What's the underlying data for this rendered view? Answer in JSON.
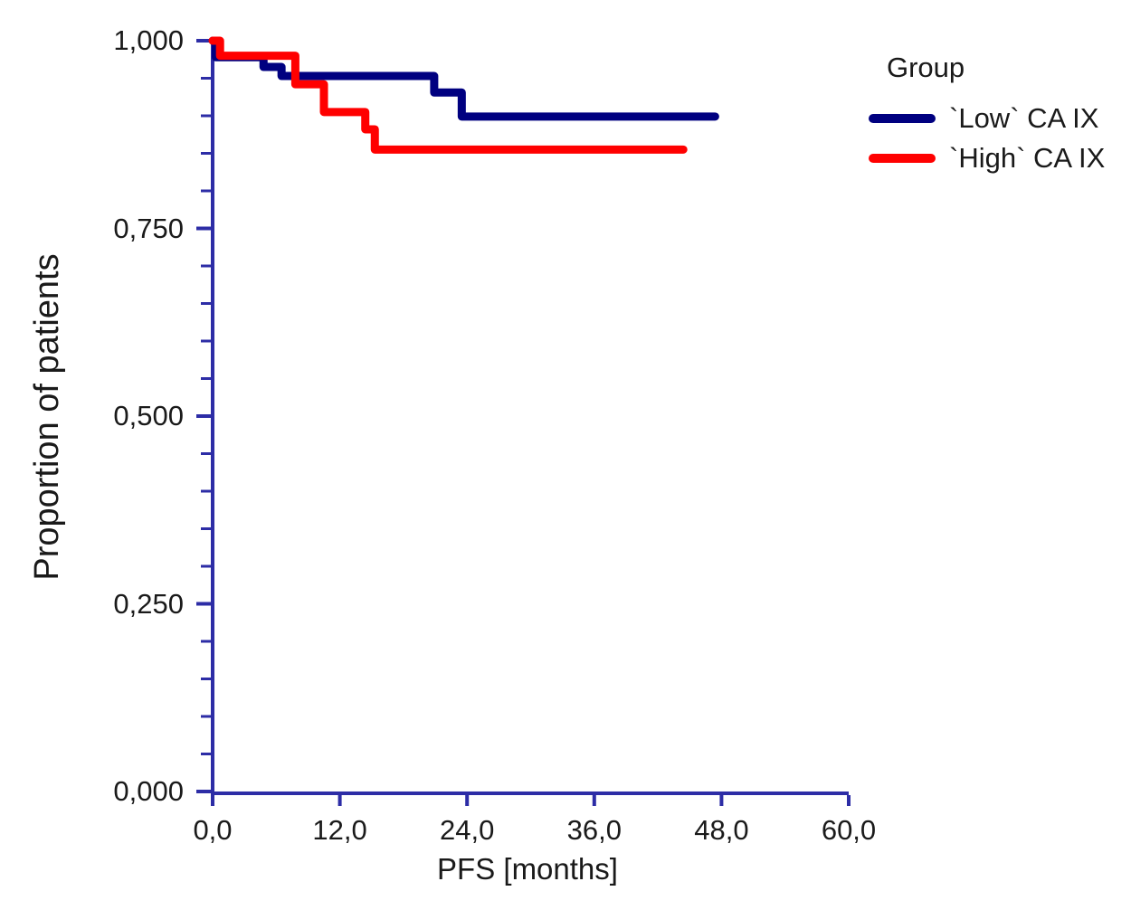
{
  "legend": {
    "title": "Group",
    "items": [
      {
        "label": "`Low` CA IX",
        "color": "#000080"
      },
      {
        "label": "`High` CA IX",
        "color": "#ff0000"
      }
    ]
  },
  "chart_data": {
    "type": "line",
    "subtype": "kaplan-meier-step",
    "title": "",
    "xlabel": "PFS [months]",
    "ylabel": "Proportion of patients",
    "xlim": [
      0,
      60
    ],
    "ylim": [
      0.0,
      1.0
    ],
    "grid": false,
    "legend_position": "top-right",
    "axis_color": "#2d2da6",
    "x_ticks": {
      "values": [
        0,
        12,
        24,
        36,
        48,
        60
      ],
      "labels": [
        "0,0",
        "12,0",
        "24,0",
        "36,0",
        "48,0",
        "60,0"
      ]
    },
    "y_ticks": {
      "values": [
        1.0,
        0.75,
        0.5,
        0.25,
        0.0
      ],
      "labels": [
        "1,000",
        "0,750",
        "0,500",
        "0,250",
        "0,000"
      ],
      "minor_step": 0.05
    },
    "series": [
      {
        "name": "`Low` CA IX",
        "color": "#000080",
        "points": [
          [
            0,
            1.0
          ],
          [
            0.3,
            1.0
          ],
          [
            0.3,
            0.978
          ],
          [
            4.8,
            0.978
          ],
          [
            4.8,
            0.965
          ],
          [
            6.5,
            0.965
          ],
          [
            6.5,
            0.953
          ],
          [
            20.9,
            0.953
          ],
          [
            20.9,
            0.931
          ],
          [
            23.5,
            0.931
          ],
          [
            23.5,
            0.899
          ],
          [
            47.4,
            0.899
          ]
        ]
      },
      {
        "name": "`High` CA IX",
        "color": "#ff0000",
        "points": [
          [
            0,
            1.0
          ],
          [
            0.7,
            1.0
          ],
          [
            0.7,
            0.98
          ],
          [
            7.8,
            0.98
          ],
          [
            7.8,
            0.942
          ],
          [
            10.5,
            0.942
          ],
          [
            10.5,
            0.905
          ],
          [
            14.4,
            0.905
          ],
          [
            14.4,
            0.882
          ],
          [
            15.3,
            0.882
          ],
          [
            15.3,
            0.855
          ],
          [
            44.4,
            0.855
          ]
        ]
      }
    ]
  }
}
